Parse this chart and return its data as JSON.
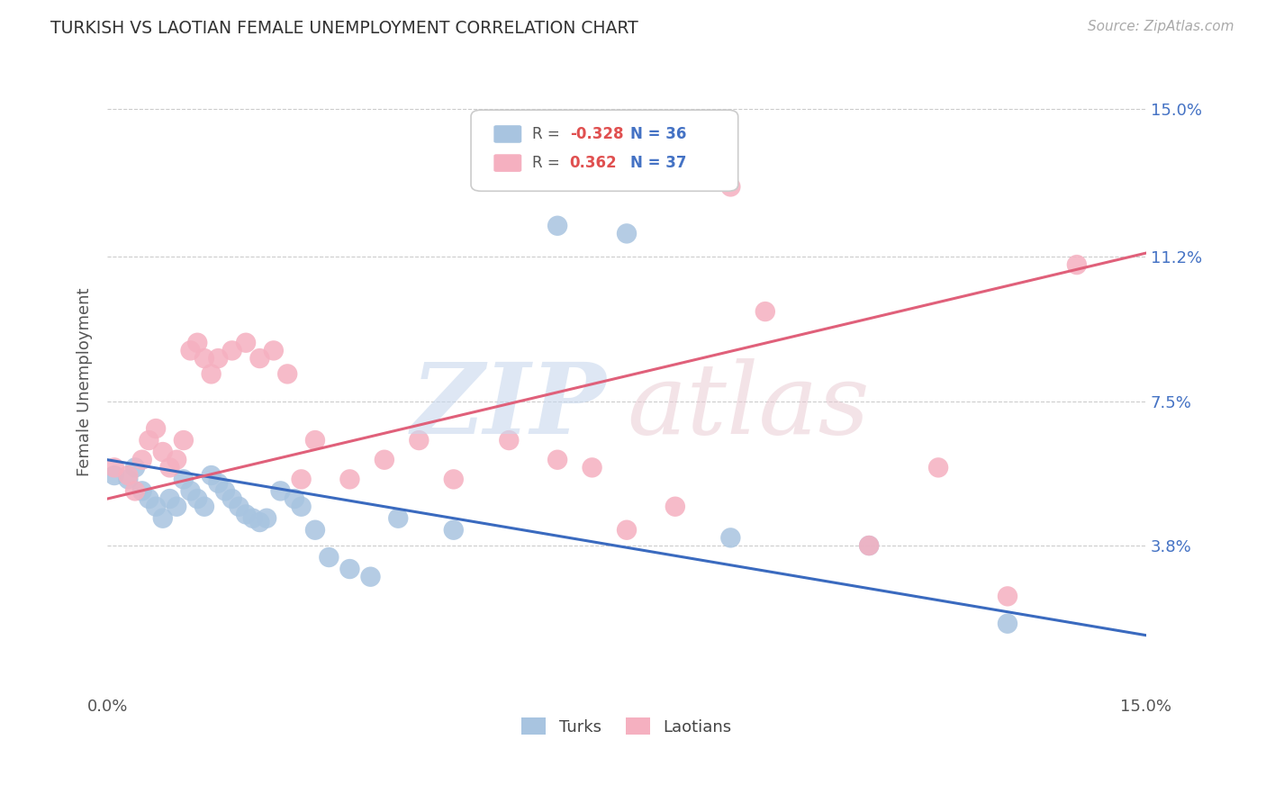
{
  "title": "TURKISH VS LAOTIAN FEMALE UNEMPLOYMENT CORRELATION CHART",
  "source": "Source: ZipAtlas.com",
  "ylabel": "Female Unemployment",
  "ytick_labels": [
    "15.0%",
    "11.2%",
    "7.5%",
    "3.8%"
  ],
  "ytick_values": [
    0.15,
    0.112,
    0.075,
    0.038
  ],
  "xlim": [
    0.0,
    0.15
  ],
  "ylim": [
    0.0,
    0.16
  ],
  "turks_R": "-0.328",
  "turks_N": "36",
  "laotians_R": "0.362",
  "laotians_N": "37",
  "turks_color": "#a8c4e0",
  "turks_line_color": "#3a6abf",
  "laotians_color": "#f5b0c0",
  "laotians_line_color": "#e0607a",
  "background_color": "#ffffff",
  "turks_x": [
    0.001,
    0.003,
    0.004,
    0.005,
    0.006,
    0.007,
    0.008,
    0.009,
    0.01,
    0.011,
    0.012,
    0.013,
    0.014,
    0.015,
    0.016,
    0.017,
    0.018,
    0.019,
    0.02,
    0.021,
    0.022,
    0.023,
    0.025,
    0.027,
    0.028,
    0.03,
    0.032,
    0.035,
    0.038,
    0.042,
    0.05,
    0.065,
    0.075,
    0.09,
    0.11,
    0.13
  ],
  "turks_y": [
    0.056,
    0.055,
    0.058,
    0.052,
    0.05,
    0.048,
    0.045,
    0.05,
    0.048,
    0.055,
    0.052,
    0.05,
    0.048,
    0.056,
    0.054,
    0.052,
    0.05,
    0.048,
    0.046,
    0.045,
    0.044,
    0.045,
    0.052,
    0.05,
    0.048,
    0.042,
    0.035,
    0.032,
    0.03,
    0.045,
    0.042,
    0.12,
    0.118,
    0.04,
    0.038,
    0.018
  ],
  "laotians_x": [
    0.001,
    0.003,
    0.004,
    0.005,
    0.006,
    0.007,
    0.008,
    0.009,
    0.01,
    0.011,
    0.012,
    0.013,
    0.014,
    0.015,
    0.016,
    0.018,
    0.02,
    0.022,
    0.024,
    0.026,
    0.028,
    0.03,
    0.035,
    0.04,
    0.045,
    0.05,
    0.058,
    0.065,
    0.07,
    0.075,
    0.082,
    0.09,
    0.095,
    0.11,
    0.12,
    0.13,
    0.14
  ],
  "laotians_y": [
    0.058,
    0.056,
    0.052,
    0.06,
    0.065,
    0.068,
    0.062,
    0.058,
    0.06,
    0.065,
    0.088,
    0.09,
    0.086,
    0.082,
    0.086,
    0.088,
    0.09,
    0.086,
    0.088,
    0.082,
    0.055,
    0.065,
    0.055,
    0.06,
    0.065,
    0.055,
    0.065,
    0.06,
    0.058,
    0.042,
    0.048,
    0.13,
    0.098,
    0.038,
    0.058,
    0.025,
    0.11
  ]
}
